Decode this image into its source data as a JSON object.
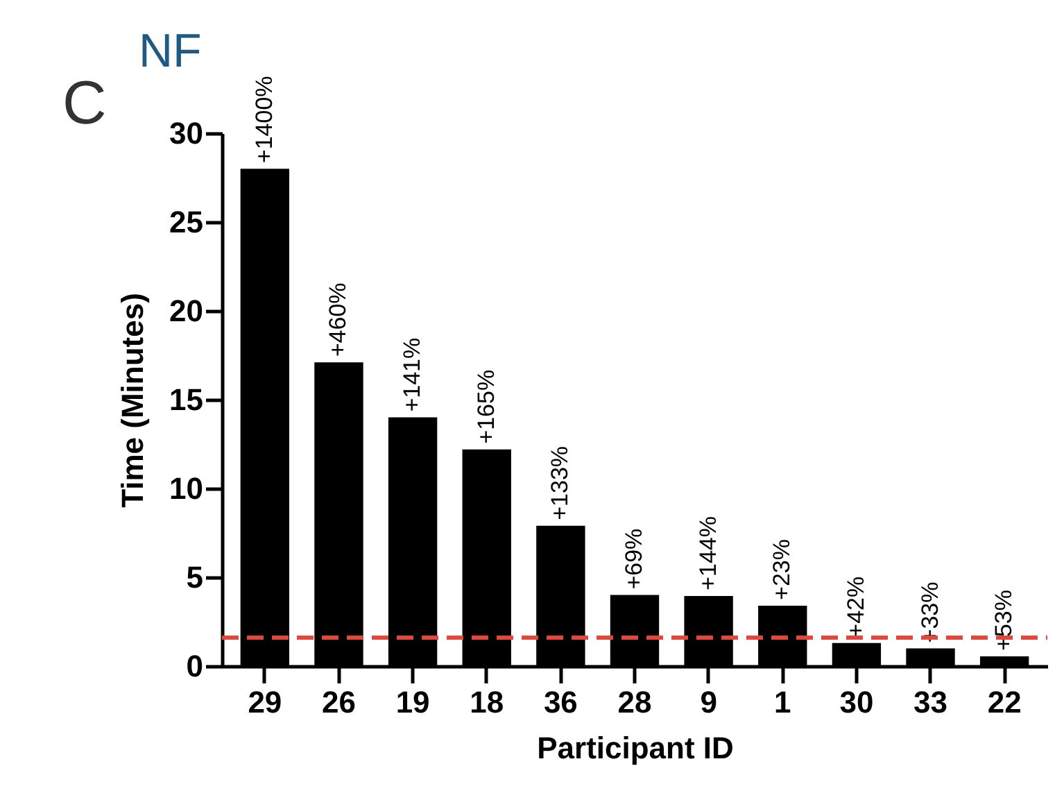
{
  "chart_data": {
    "type": "bar",
    "xlabel": "Participant ID",
    "ylabel": "Time (Minutes)",
    "categories": [
      "29",
      "26",
      "19",
      "18",
      "36",
      "28",
      "9",
      "1",
      "30",
      "33",
      "22"
    ],
    "values": [
      28,
      17.1,
      14,
      12.2,
      7.9,
      4,
      3.95,
      3.4,
      1.3,
      1.0,
      0.55
    ],
    "color": "#000000",
    "ylim": [
      0,
      30
    ],
    "yticks": [
      0,
      5,
      10,
      15,
      20,
      25,
      30
    ],
    "grid": false,
    "ref_lines": [
      {
        "axis": "y",
        "value": 1.6,
        "color": "#e0483c",
        "line_style": "dashed"
      }
    ],
    "annotations": [
      "C",
      "NF",
      {
        "text": "+1400%",
        "x": "29",
        "y": 28
      },
      {
        "text": "+460%",
        "x": "26",
        "y": 17.1
      },
      {
        "text": "+141%",
        "x": "19",
        "y": 14
      },
      {
        "text": "+165%",
        "x": "18",
        "y": 12.2
      },
      {
        "text": "+133%",
        "x": "36",
        "y": 7.9
      },
      {
        "text": "+69%",
        "x": "28",
        "y": 4
      },
      {
        "text": "+144%",
        "x": "9",
        "y": 3.95
      },
      {
        "text": "+23%",
        "x": "1",
        "y": 3.4
      },
      {
        "text": "+42%",
        "x": "30",
        "y": 1.3
      },
      {
        "text": "+33%",
        "x": "33",
        "y": 1.0
      },
      {
        "text": "+53%",
        "x": "22",
        "y": 0.55
      }
    ]
  }
}
